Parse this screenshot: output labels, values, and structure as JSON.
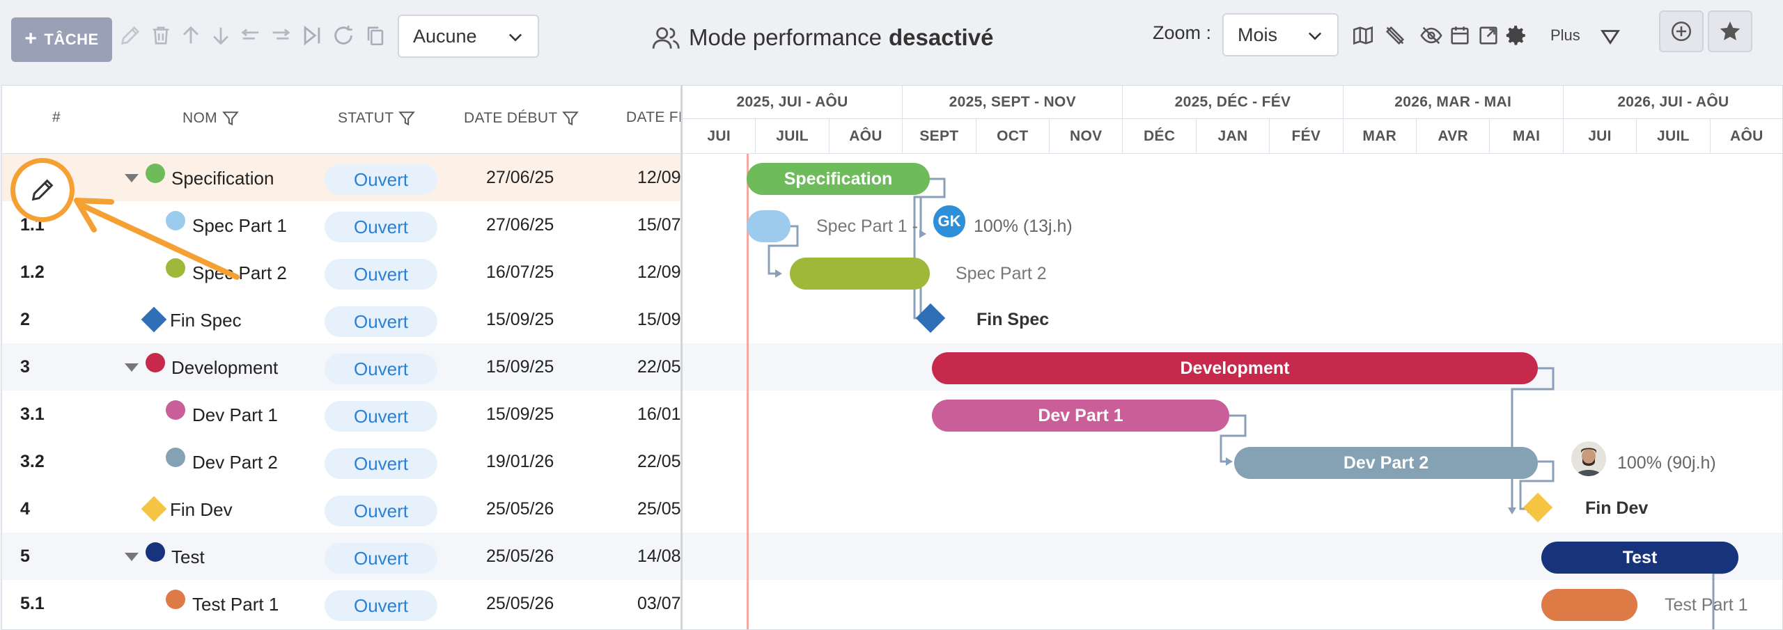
{
  "toolbar": {
    "add_task_label": "TÂCHE",
    "filter_select_value": "Aucune",
    "performance_prefix": "Mode performance",
    "performance_state": "desactivé",
    "zoom_label": "Zoom :",
    "zoom_value": "Mois",
    "more_label": "Plus"
  },
  "grid": {
    "columns": [
      "#",
      "NOM",
      "STATUT",
      "DATE DÉBUT",
      "DATE FI"
    ],
    "rows": [
      {
        "num": "",
        "name": "Specification",
        "status": "Ouvert",
        "start": "27/06/25",
        "end": "12/09",
        "kind": "group",
        "color": "#6dbb5b"
      },
      {
        "num": "1.1",
        "name": "Spec Part 1",
        "status": "Ouvert",
        "start": "27/06/25",
        "end": "15/07",
        "kind": "task",
        "color": "#9ccbed"
      },
      {
        "num": "1.2",
        "name": "Spec Part 2",
        "status": "Ouvert",
        "start": "16/07/25",
        "end": "12/09",
        "kind": "task",
        "color": "#a0b83a"
      },
      {
        "num": "2",
        "name": "Fin Spec",
        "status": "Ouvert",
        "start": "15/09/25",
        "end": "15/09",
        "kind": "milestone",
        "color": "#2f6fb8"
      },
      {
        "num": "3",
        "name": "Development",
        "status": "Ouvert",
        "start": "15/09/25",
        "end": "22/05",
        "kind": "group",
        "color": "#c7294d"
      },
      {
        "num": "3.1",
        "name": "Dev Part 1",
        "status": "Ouvert",
        "start": "15/09/25",
        "end": "16/01",
        "kind": "task",
        "color": "#c95e99"
      },
      {
        "num": "3.2",
        "name": "Dev Part 2",
        "status": "Ouvert",
        "start": "19/01/26",
        "end": "22/05",
        "kind": "task",
        "color": "#84a2b3"
      },
      {
        "num": "4",
        "name": "Fin Dev",
        "status": "Ouvert",
        "start": "25/05/26",
        "end": "25/05",
        "kind": "milestone",
        "color": "#f5c443"
      },
      {
        "num": "5",
        "name": "Test",
        "status": "Ouvert",
        "start": "25/05/26",
        "end": "14/08",
        "kind": "group",
        "color": "#16337c"
      },
      {
        "num": "5.1",
        "name": "Test Part 1",
        "status": "Ouvert",
        "start": "25/05/26",
        "end": "03/07",
        "kind": "task",
        "color": "#dd7a46"
      }
    ]
  },
  "gantt": {
    "quarters": [
      "2025, JUI - AÔU",
      "2025, SEPT - NOV",
      "2025, DÉC - FÉV",
      "2026, MAR - MAI",
      "2026, JUI - AÔU"
    ],
    "months": [
      "JUI",
      "JUIL",
      "AÔU",
      "SEPT",
      "OCT",
      "NOV",
      "DÉC",
      "JAN",
      "FÉV",
      "MAR",
      "AVR",
      "MAI",
      "JUI",
      "JUIL",
      "AÔU"
    ],
    "bars": {
      "specification": "Specification",
      "spec_part_1_label": "Spec Part 1 -",
      "spec_part_1_assignee": "GK",
      "spec_part_1_progress": "100% (13j.h)",
      "spec_part_2_label": "Spec Part 2",
      "fin_spec": "Fin Spec",
      "development": "Development",
      "dev_part_1": "Dev Part 1",
      "dev_part_2": "Dev Part 2",
      "dev_part_2_progress": "100% (90j.h)",
      "fin_dev": "Fin Dev",
      "test": "Test",
      "test_part_1_label": "Test Part 1"
    }
  },
  "colors": {
    "accent": "#f5a033",
    "status_text": "#2b7fd6",
    "status_bg": "#e6f1fb",
    "link_lines": "#8aa0b8"
  },
  "icons": [
    "plus-icon",
    "pencil-icon",
    "trash-icon",
    "arrow-up-icon",
    "arrow-down-icon",
    "outdent-icon",
    "indent-icon",
    "split-icon",
    "refresh-icon",
    "copy-icon",
    "chevron-down-icon",
    "users-icon",
    "map-icon",
    "hide-links-icon",
    "eye-off-icon",
    "calendar-icon",
    "expand-icon",
    "gear-icon",
    "triangle-down-icon",
    "add-circle-icon",
    "star-icon",
    "filter-icon"
  ]
}
